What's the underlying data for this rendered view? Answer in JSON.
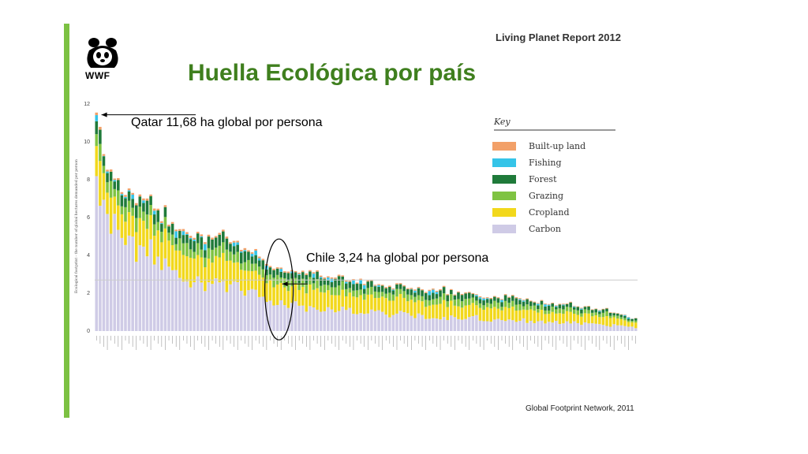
{
  "header": {
    "report_title": "Living Planet Report 2012",
    "logo_text": "WWF",
    "title": "Huella Ecológica por país",
    "source": "Global Footprint Network, 2011"
  },
  "chart_data": {
    "type": "bar",
    "stacked": true,
    "ylabel": "Ecological footprint - the number of global hectares demanded per person",
    "ylim": [
      0,
      12
    ],
    "y_ticks": [
      "0",
      "2",
      "4",
      "6",
      "8",
      "10",
      "12"
    ],
    "reference_line_y": 2.7,
    "legend": {
      "title": "Key",
      "placement": "top-right",
      "entries": [
        {
          "name": "Built-up land",
          "color": "#f2a068"
        },
        {
          "name": "Fishing",
          "color": "#35c4e8"
        },
        {
          "name": "Forest",
          "color": "#1f7a3a"
        },
        {
          "name": "Grazing",
          "color": "#7fc342"
        },
        {
          "name": "Cropland",
          "color": "#f2d81c"
        },
        {
          "name": "Carbon",
          "color": "#cfcbe6"
        }
      ]
    },
    "annotations": [
      {
        "text": "Qatar 11,68 ha global por persona",
        "x_index": 0,
        "value": 11.68
      },
      {
        "text": "Chile 3,24 ha global por persona",
        "x_index": 50,
        "value": 3.24
      }
    ],
    "country_count": 150,
    "totals_control_points": [
      [
        0,
        11.68
      ],
      [
        1,
        10.5
      ],
      [
        2,
        9.7
      ],
      [
        3,
        8.9
      ],
      [
        5,
        8.2
      ],
      [
        8,
        7.4
      ],
      [
        12,
        6.9
      ],
      [
        17,
        6.4
      ],
      [
        22,
        5.6
      ],
      [
        30,
        5.0
      ],
      [
        40,
        4.5
      ],
      [
        45,
        4.1
      ],
      [
        50,
        3.24
      ],
      [
        60,
        3.0
      ],
      [
        75,
        2.6
      ],
      [
        90,
        2.2
      ],
      [
        105,
        1.9
      ],
      [
        120,
        1.6
      ],
      [
        135,
        1.25
      ],
      [
        145,
        0.95
      ],
      [
        149,
        0.6
      ]
    ]
  }
}
